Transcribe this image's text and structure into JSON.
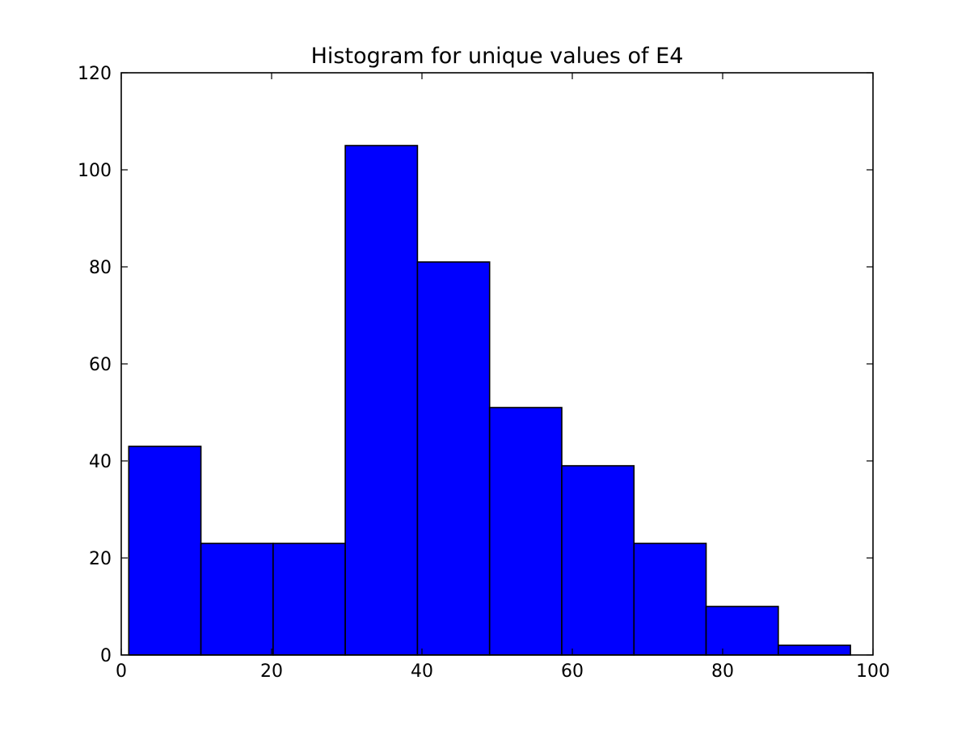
{
  "chart_data": {
    "type": "bar",
    "title": "Histogram for unique values of E4",
    "xlabel": "",
    "ylabel": "",
    "xlim": [
      0,
      100
    ],
    "ylim": [
      0,
      120
    ],
    "grid": false,
    "bar_color": "#0000ff",
    "edge_color": "#000000",
    "bins": [
      {
        "x0": 1.0,
        "x1": 10.6,
        "count": 43
      },
      {
        "x0": 10.6,
        "x1": 20.2,
        "count": 23
      },
      {
        "x0": 20.2,
        "x1": 29.8,
        "count": 23
      },
      {
        "x0": 29.8,
        "x1": 39.4,
        "count": 105
      },
      {
        "x0": 39.4,
        "x1": 49.0,
        "count": 81
      },
      {
        "x0": 49.0,
        "x1": 58.6,
        "count": 51
      },
      {
        "x0": 58.6,
        "x1": 68.2,
        "count": 39
      },
      {
        "x0": 68.2,
        "x1": 77.8,
        "count": 23
      },
      {
        "x0": 77.8,
        "x1": 87.4,
        "count": 10
      },
      {
        "x0": 87.4,
        "x1": 97.0,
        "count": 2
      }
    ],
    "x_ticks": [
      "0",
      "20",
      "40",
      "60",
      "80",
      "100"
    ],
    "y_ticks": [
      "0",
      "20",
      "40",
      "60",
      "80",
      "100",
      "120"
    ]
  }
}
